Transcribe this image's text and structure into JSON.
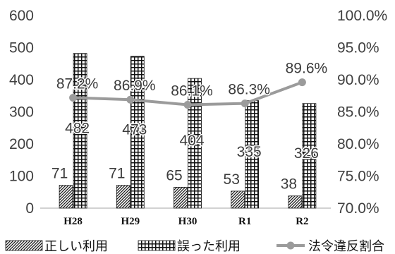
{
  "chart_data": {
    "type": "bar",
    "categories": [
      "H28",
      "H29",
      "H30",
      "R1",
      "R2"
    ],
    "series": [
      {
        "name": "正しい利用",
        "type": "bar",
        "axis": "left",
        "fill": "hatch",
        "color": "#1a1a1a",
        "values": [
          71,
          71,
          65,
          53,
          38
        ]
      },
      {
        "name": "誤った利用",
        "type": "bar",
        "axis": "left",
        "fill": "grid",
        "color": "#111111",
        "values": [
          482,
          473,
          404,
          335,
          326
        ]
      },
      {
        "name": "法令違反割合",
        "type": "line",
        "axis": "right",
        "color": "#9b9b9b",
        "marker": "circle",
        "unit": "%",
        "values": [
          87.2,
          86.9,
          86.1,
          86.3,
          89.6
        ]
      }
    ],
    "ylim": [
      0,
      600
    ],
    "y_ticks": [
      "0",
      "100",
      "200",
      "300",
      "400",
      "500",
      "600"
    ],
    "y2lim": [
      70,
      100
    ],
    "y2_ticks": [
      "70.0%",
      "75.0%",
      "80.0%",
      "85.0%",
      "90.0%",
      "95.0%",
      "100.0%"
    ],
    "data_labels": true,
    "grid": false,
    "legend": "bottom"
  }
}
